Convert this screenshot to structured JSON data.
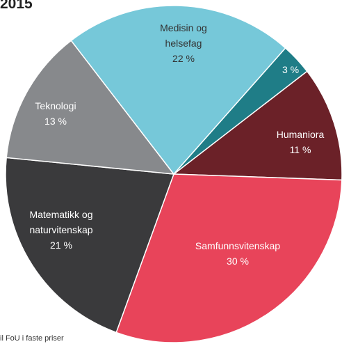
{
  "chart_data": {
    "type": "pie",
    "title": "2015",
    "categories": [
      "Humaniora",
      "Samfunnsvitenskap",
      "Matematikk og naturvitenskap",
      "Teknologi",
      "Medisin og helsefag",
      null
    ],
    "values": [
      11,
      30,
      21,
      13,
      22,
      3
    ],
    "value_labels": [
      "11 %",
      "30 %",
      "21 %",
      "13 %",
      "22 %",
      "3 %"
    ],
    "colors": [
      "#6b2128",
      "#e8445a",
      "#3a3a3c",
      "#87898c",
      "#76c8d9",
      "#1f7d87"
    ],
    "footnote": "il FoU i faste priser"
  }
}
